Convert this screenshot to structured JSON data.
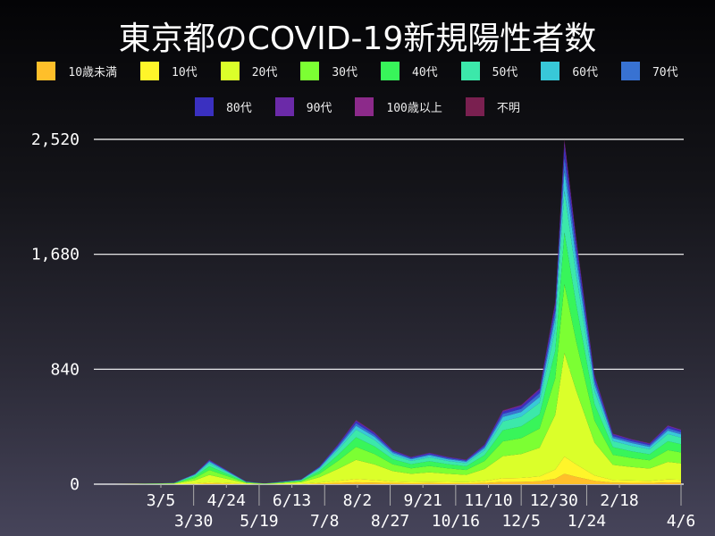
{
  "chart_data": {
    "type": "area",
    "stacked": true,
    "title": "東京都のCOVID-19新規陽性者数",
    "xlabel": "",
    "ylabel": "",
    "ylim": [
      0,
      2520
    ],
    "yticks": [
      "0",
      "840",
      "1,680",
      "2,520"
    ],
    "ytick_values": [
      0,
      840,
      1680,
      2520
    ],
    "grid": "horizontal",
    "legend_placement": "top",
    "xtick_labels": [
      "3/5",
      "3/30",
      "4/24",
      "5/19",
      "6/13",
      "7/8",
      "8/2",
      "8/27",
      "9/21",
      "10/16",
      "11/10",
      "12/5",
      "12/30",
      "1/24",
      "2/18",
      "4/6"
    ],
    "xtick_dates": [
      "2020-03-05",
      "2020-03-30",
      "2020-04-24",
      "2020-05-19",
      "2020-06-13",
      "2020-07-08",
      "2020-08-02",
      "2020-08-27",
      "2020-09-21",
      "2020-10-16",
      "2020-11-10",
      "2020-12-05",
      "2020-12-30",
      "2021-01-24",
      "2021-02-18",
      "2021-04-06"
    ],
    "x": [
      "2020-01-24",
      "2020-02-15",
      "2020-03-01",
      "2020-03-15",
      "2020-03-31",
      "2020-04-11",
      "2020-04-25",
      "2020-05-09",
      "2020-05-23",
      "2020-06-06",
      "2020-06-20",
      "2020-07-04",
      "2020-07-18",
      "2020-08-01",
      "2020-08-15",
      "2020-08-29",
      "2020-09-12",
      "2020-09-26",
      "2020-10-10",
      "2020-10-24",
      "2020-11-07",
      "2020-11-21",
      "2020-12-05",
      "2020-12-19",
      "2020-12-31",
      "2021-01-07",
      "2021-01-16",
      "2021-01-30",
      "2021-02-13",
      "2021-02-27",
      "2021-03-13",
      "2021-03-27",
      "2021-04-06"
    ],
    "series": [
      {
        "name": "10歳未満",
        "color": "#ffbf2a",
        "values": [
          0,
          0,
          0,
          0,
          2,
          5,
          3,
          1,
          0,
          1,
          1,
          4,
          9,
          14,
          11,
          8,
          6,
          7,
          6,
          5,
          9,
          16,
          17,
          21,
          40,
          76,
          54,
          24,
          11,
          10,
          9,
          13,
          12
        ]
      },
      {
        "name": "10代",
        "color": "#fff52a",
        "values": [
          0,
          0,
          0,
          1,
          4,
          9,
          5,
          1,
          0,
          1,
          2,
          7,
          15,
          23,
          19,
          12,
          10,
          11,
          10,
          9,
          15,
          27,
          29,
          35,
          67,
          126,
          90,
          40,
          19,
          17,
          15,
          21,
          20
        ]
      },
      {
        "name": "20代",
        "color": "#dbff2a",
        "values": [
          0,
          1,
          2,
          3,
          23,
          54,
          30,
          6,
          2,
          6,
          11,
          39,
          87,
          141,
          114,
          75,
          60,
          69,
          60,
          54,
          87,
          162,
          174,
          210,
          401,
          756,
          540,
          240,
          111,
          99,
          90,
          129,
          120
        ]
      },
      {
        "name": "30代",
        "color": "#7cff33",
        "values": [
          0,
          0,
          1,
          2,
          16,
          36,
          20,
          4,
          1,
          4,
          7,
          26,
          58,
          94,
          76,
          50,
          40,
          46,
          40,
          36,
          58,
          108,
          116,
          140,
          267,
          504,
          360,
          160,
          74,
          66,
          60,
          86,
          80
        ]
      },
      {
        "name": "40代",
        "color": "#38f55a",
        "values": [
          0,
          0,
          1,
          1,
          12,
          27,
          15,
          3,
          1,
          3,
          5,
          19,
          43,
          71,
          57,
          38,
          30,
          35,
          30,
          27,
          43,
          81,
          87,
          105,
          201,
          378,
          270,
          120,
          56,
          49,
          45,
          65,
          60
        ]
      },
      {
        "name": "50代",
        "color": "#3ce8aa",
        "values": [
          0,
          0,
          1,
          1,
          9,
          22,
          12,
          2,
          1,
          2,
          4,
          16,
          35,
          56,
          46,
          30,
          24,
          28,
          24,
          22,
          35,
          65,
          70,
          84,
          160,
          302,
          216,
          96,
          44,
          40,
          36,
          52,
          48
        ]
      },
      {
        "name": "60代",
        "color": "#38c8d8",
        "values": [
          0,
          0,
          0,
          1,
          5,
          11,
          6,
          1,
          0,
          1,
          2,
          8,
          17,
          28,
          23,
          15,
          12,
          14,
          12,
          11,
          17,
          32,
          35,
          42,
          80,
          151,
          108,
          48,
          22,
          20,
          18,
          26,
          24
        ]
      },
      {
        "name": "70代",
        "color": "#3872d2",
        "values": [
          0,
          0,
          0,
          1,
          3,
          7,
          4,
          1,
          0,
          1,
          1,
          5,
          12,
          19,
          15,
          10,
          8,
          9,
          8,
          7,
          12,
          22,
          23,
          28,
          53,
          101,
          72,
          32,
          15,
          13,
          12,
          17,
          16
        ]
      },
      {
        "name": "80代",
        "color": "#3a30c0",
        "values": [
          0,
          0,
          0,
          0,
          2,
          5,
          3,
          1,
          0,
          1,
          1,
          4,
          9,
          14,
          11,
          7,
          6,
          7,
          6,
          5,
          9,
          16,
          17,
          21,
          40,
          76,
          54,
          24,
          11,
          10,
          9,
          13,
          12
        ]
      },
      {
        "name": "90代",
        "color": "#6b2aa8",
        "values": [
          0,
          0,
          0,
          0,
          1,
          3,
          1,
          0,
          0,
          0,
          1,
          2,
          4,
          7,
          6,
          4,
          3,
          3,
          3,
          3,
          4,
          8,
          9,
          10,
          20,
          38,
          27,
          12,
          6,
          5,
          5,
          6,
          6
        ]
      },
      {
        "name": "100歳以上",
        "color": "#8c2a8a",
        "values": [
          0,
          0,
          0,
          0,
          0,
          0,
          0,
          0,
          0,
          0,
          0,
          0,
          0,
          0,
          0,
          0,
          0,
          0,
          0,
          0,
          0,
          0,
          0,
          0,
          0,
          0,
          0,
          0,
          0,
          0,
          0,
          0,
          0
        ]
      },
      {
        "name": "不明",
        "color": "#7a2050",
        "values": [
          0,
          0,
          0,
          0,
          1,
          1,
          1,
          0,
          0,
          0,
          0,
          0,
          1,
          3,
          2,
          1,
          1,
          1,
          1,
          1,
          1,
          3,
          3,
          4,
          8,
          12,
          9,
          4,
          1,
          1,
          1,
          2,
          2
        ]
      }
    ]
  }
}
